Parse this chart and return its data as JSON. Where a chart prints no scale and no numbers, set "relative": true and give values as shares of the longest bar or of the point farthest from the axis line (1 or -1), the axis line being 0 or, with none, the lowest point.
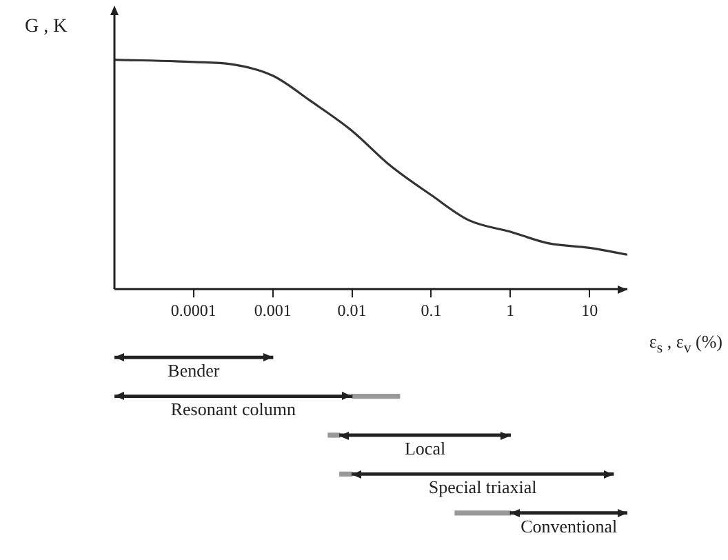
{
  "chart_data": [
    {
      "type": "line",
      "relative": true,
      "log": "x",
      "xlabel": "ε$_{s}$ , ε$_{v}$ (%)",
      "ylabel": "G , K",
      "x": [
        1e-05,
        0.0001,
        0.0003,
        0.001,
        0.003,
        0.01,
        0.03,
        0.1,
        0.3,
        1,
        3,
        10,
        30
      ],
      "xlim": [
        1e-05,
        30
      ],
      "xticks": [
        0.0001,
        0.001,
        0.01,
        0.1,
        1,
        10
      ],
      "series": [
        {
          "color": "#333333",
          "values": [
            1.0,
            0.99,
            0.98,
            0.93,
            0.82,
            0.69,
            0.54,
            0.41,
            0.3,
            0.25,
            0.2,
            0.18,
            0.15
          ]
        }
      ],
      "grid": false,
      "legend": false,
      "marker": "none",
      "line_style": "solid"
    },
    {
      "type": "bar",
      "orientation": "horizontal",
      "log": "x",
      "xlim": [
        1e-05,
        30
      ],
      "tick_labels": false,
      "legend": false,
      "grid": false,
      "categories": [
        "Bender",
        "Resonant column",
        "Local",
        "Special triaxial",
        "Conventional"
      ],
      "series": [
        {
          "color": "#222222",
          "base": [
            1e-05,
            1e-05,
            0.007,
            0.01,
            1
          ],
          "values": [
            0.00099,
            0.00999,
            0.993,
            19.99,
            29
          ]
        },
        {
          "color": "#999999",
          "base": [
            null,
            0.01,
            0.005,
            0.007,
            0.2
          ],
          "values": [
            null,
            0.03,
            0.002,
            0.003,
            0.8
          ]
        }
      ]
    }
  ]
}
